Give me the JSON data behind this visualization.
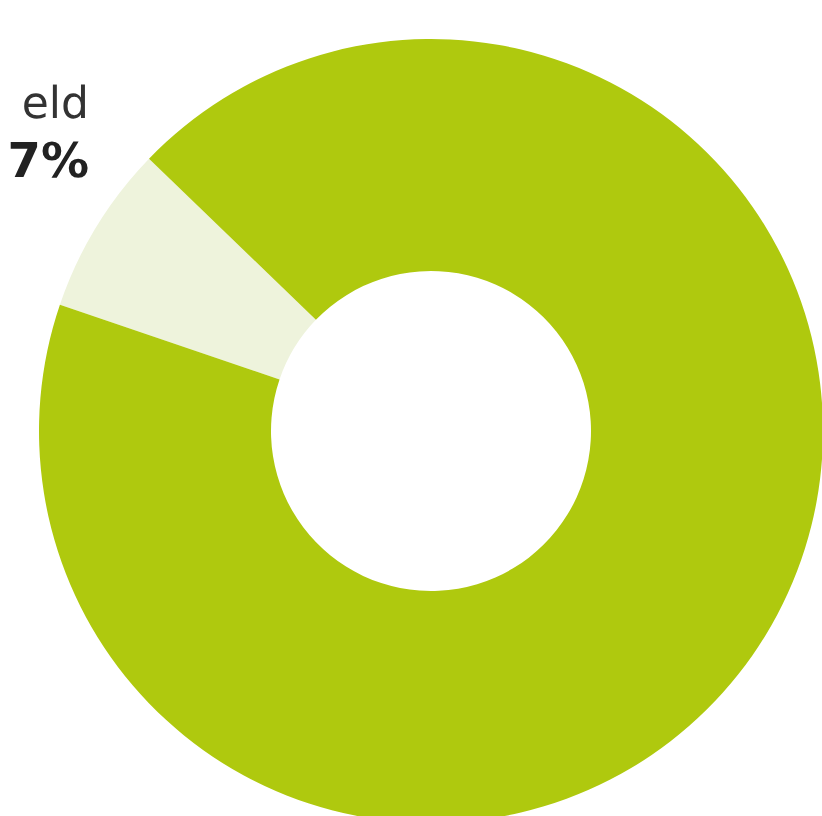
{
  "chart_data": {
    "type": "donut",
    "categories": [
      "eld",
      null
    ],
    "values": [
      7,
      93
    ],
    "colors": [
      "#eef3dc",
      "#afc90e"
    ],
    "value_labels": [
      "7%",
      null
    ]
  }
}
